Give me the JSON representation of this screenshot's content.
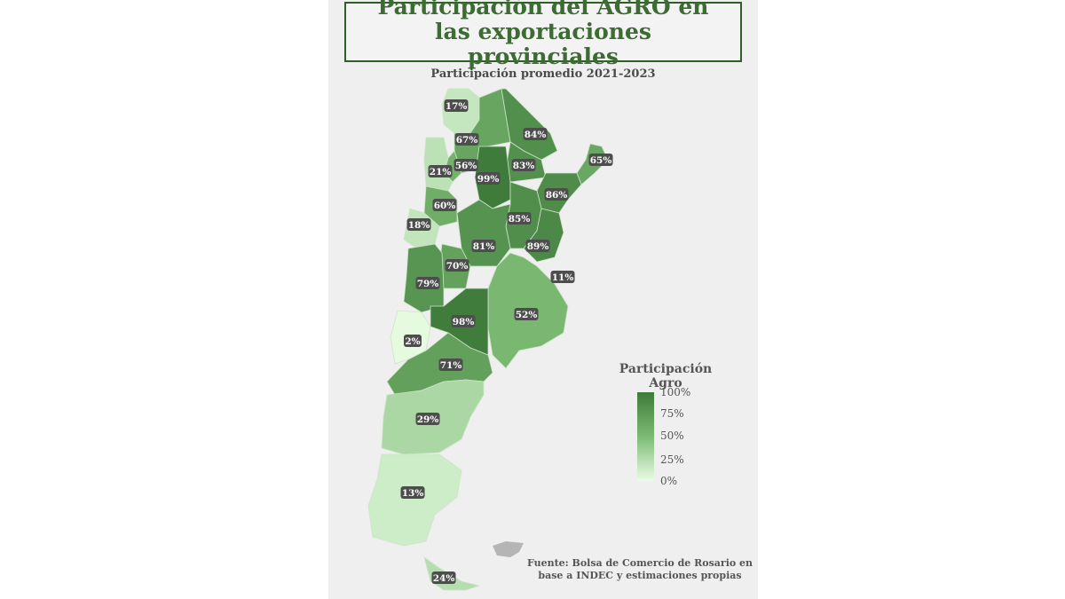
{
  "title": "Participación del AGRO en las exportaciones provinciales",
  "subtitle": "Participación promedio 2021-2023",
  "legend": {
    "title": "Participación Agro",
    "ticks": [
      "100%",
      "75%",
      "50%",
      "25%",
      "0%"
    ],
    "color_max": "#3e7a3a",
    "color_mid": "#7cbb74",
    "color_min": "#eafde5"
  },
  "source": "Fuente: Bolsa de Comercio de Rosario en base a INDEC y estimaciones propias",
  "labels": [
    "17%",
    "67%",
    "84%",
    "56%",
    "83%",
    "65%",
    "21%",
    "99%",
    "86%",
    "60%",
    "85%",
    "18%",
    "81%",
    "89%",
    "70%",
    "11%",
    "79%",
    "52%",
    "98%",
    "2%",
    "71%",
    "29%",
    "13%",
    "24%"
  ],
  "regions": [
    0.17,
    0.67,
    0.84,
    0.56,
    0.83,
    0.65,
    0.21,
    0.99,
    0.86,
    0.6,
    0.85,
    0.18,
    0.81,
    0.89,
    0.7,
    0.11,
    0.79,
    0.52,
    0.98,
    0.02,
    0.71,
    0.29,
    0.13,
    0.24
  ]
}
